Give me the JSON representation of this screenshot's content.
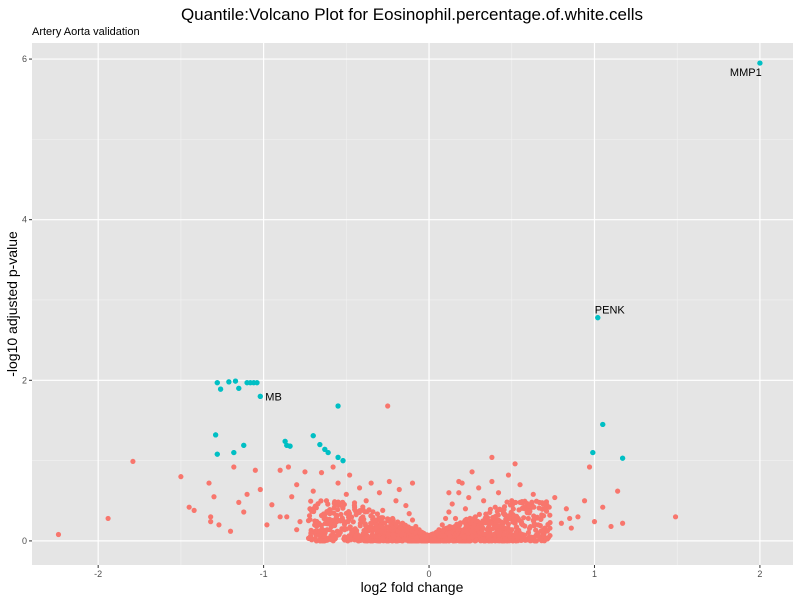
{
  "chart_data": {
    "type": "scatter",
    "title": "Quantile:Volcano Plot for Eosinophil.percentage.of.white.cells",
    "subtitle": "Artery Aorta validation",
    "xlabel": "log2 fold change",
    "ylabel": "-log10 adjusted p-value",
    "xlim": [
      -2.4,
      2.2
    ],
    "ylim": [
      -0.3,
      6.2
    ],
    "x_ticks": [
      -2,
      -1,
      0,
      1,
      2
    ],
    "x_tick_labels": [
      "-2",
      "-1",
      "0",
      "1",
      "2"
    ],
    "y_ticks": [
      0,
      2,
      4,
      6
    ],
    "y_tick_labels": [
      "0",
      "2",
      "4",
      "6"
    ],
    "grid": true,
    "background": "#e5e5e5",
    "colors": {
      "not_significant": "#f8766d",
      "significant": "#00bfc4"
    },
    "series": [
      {
        "points": [
          [
            -2.24,
            0.08
          ],
          [
            -1.94,
            0.28
          ],
          [
            -1.79,
            0.99
          ],
          [
            -1.5,
            0.8
          ],
          [
            -1.45,
            0.42
          ],
          [
            -1.42,
            0.38
          ],
          [
            -1.33,
            0.72
          ],
          [
            -1.32,
            0.3
          ],
          [
            -1.32,
            0.24
          ],
          [
            -1.3,
            0.55
          ],
          [
            -1.27,
            0.2
          ],
          [
            -1.2,
            0.12
          ],
          [
            -1.18,
            0.92
          ],
          [
            -1.15,
            0.48
          ],
          [
            -1.12,
            0.36
          ],
          [
            -1.1,
            0.58
          ],
          [
            -1.05,
            0.88
          ],
          [
            -1.02,
            0.64
          ],
          [
            -0.98,
            0.2
          ],
          [
            -0.95,
            0.45
          ],
          [
            -0.9,
            0.88
          ],
          [
            -0.86,
            0.3
          ],
          [
            -0.85,
            0.92
          ],
          [
            -0.83,
            0.55
          ],
          [
            -0.8,
            0.7
          ],
          [
            -0.78,
            0.24
          ],
          [
            -0.75,
            0.86
          ],
          [
            -0.72,
            0.4
          ],
          [
            -0.7,
            0.62
          ],
          [
            -0.68,
            0.18
          ],
          [
            -0.65,
            0.85
          ],
          [
            -0.62,
            0.5
          ],
          [
            -0.6,
            0.34
          ],
          [
            -0.58,
            0.92
          ],
          [
            -0.55,
            0.72
          ],
          [
            -0.52,
            0.25
          ],
          [
            -0.5,
            0.58
          ],
          [
            -0.48,
            0.82
          ],
          [
            -0.45,
            0.42
          ],
          [
            -0.42,
            0.66
          ],
          [
            -0.4,
            0.3
          ],
          [
            -0.38,
            0.5
          ],
          [
            -0.35,
            0.72
          ],
          [
            -0.32,
            0.2
          ],
          [
            -0.3,
            0.6
          ],
          [
            -0.28,
            0.38
          ],
          [
            -0.25,
            1.68
          ],
          [
            -0.24,
            0.74
          ],
          [
            -0.22,
            0.28
          ],
          [
            -0.2,
            0.5
          ],
          [
            -0.18,
            0.64
          ],
          [
            -0.16,
            0.22
          ],
          [
            -0.14,
            0.44
          ],
          [
            -0.12,
            0.34
          ],
          [
            -0.1,
            0.26
          ],
          [
            -0.08,
            0.18
          ],
          [
            -0.06,
            0.14
          ],
          [
            -0.04,
            0.1
          ],
          [
            -0.02,
            0.06
          ],
          [
            0.0,
            0.02
          ],
          [
            0.02,
            0.06
          ],
          [
            0.04,
            0.1
          ],
          [
            0.06,
            0.14
          ],
          [
            0.08,
            0.2
          ],
          [
            0.1,
            0.28
          ],
          [
            0.12,
            0.36
          ],
          [
            0.14,
            0.46
          ],
          [
            0.16,
            0.28
          ],
          [
            0.18,
            0.6
          ],
          [
            0.2,
            0.72
          ],
          [
            0.22,
            0.4
          ],
          [
            0.24,
            0.54
          ],
          [
            0.26,
            0.86
          ],
          [
            0.28,
            0.3
          ],
          [
            0.3,
            0.66
          ],
          [
            0.33,
            0.5
          ],
          [
            0.35,
            0.26
          ],
          [
            0.38,
            0.74
          ],
          [
            0.4,
            0.42
          ],
          [
            0.42,
            0.6
          ],
          [
            0.45,
            0.34
          ],
          [
            0.48,
            0.82
          ],
          [
            0.5,
            0.5
          ],
          [
            0.52,
            0.22
          ],
          [
            0.55,
            0.7
          ],
          [
            0.58,
            0.4
          ],
          [
            0.6,
            0.28
          ],
          [
            0.63,
            0.58
          ],
          [
            0.66,
            0.2
          ],
          [
            0.7,
            0.46
          ],
          [
            0.73,
            0.32
          ],
          [
            0.76,
            0.54
          ],
          [
            0.8,
            0.22
          ],
          [
            0.83,
            0.4
          ],
          [
            0.86,
            0.16
          ],
          [
            0.9,
            0.3
          ],
          [
            0.94,
            0.5
          ],
          [
            0.97,
            0.92
          ],
          [
            1.0,
            0.24
          ],
          [
            1.05,
            0.42
          ],
          [
            1.1,
            0.18
          ],
          [
            1.14,
            0.62
          ],
          [
            1.17,
            0.22
          ],
          [
            1.49,
            0.3
          ],
          [
            0.38,
            1.04
          ],
          [
            0.52,
            0.96
          ],
          [
            0.18,
            0.74
          ],
          [
            -0.1,
            0.72
          ],
          [
            0.12,
            0.6
          ],
          [
            -0.6,
            0.14
          ],
          [
            0.7,
            0.16
          ],
          [
            -0.8,
            0.14
          ],
          [
            0.85,
            0.28
          ],
          [
            -0.9,
            0.3
          ],
          [
            -0.35,
            0.16
          ],
          [
            0.3,
            0.14
          ],
          [
            -0.45,
            0.12
          ],
          [
            0.45,
            0.12
          ],
          [
            -0.25,
            0.1
          ],
          [
            0.25,
            0.1
          ]
        ]
      },
      {
        "points": [
          [
            2.0,
            5.95
          ],
          [
            1.02,
            2.78
          ],
          [
            -1.28,
            1.97
          ],
          [
            -1.26,
            1.89
          ],
          [
            -1.21,
            1.98
          ],
          [
            -1.17,
            1.99
          ],
          [
            -1.15,
            1.9
          ],
          [
            -1.1,
            1.97
          ],
          [
            -1.08,
            1.97
          ],
          [
            -1.06,
            1.97
          ],
          [
            -1.04,
            1.97
          ],
          [
            -1.02,
            1.8
          ],
          [
            -0.55,
            1.68
          ],
          [
            -1.29,
            1.32
          ],
          [
            -1.28,
            1.08
          ],
          [
            -1.18,
            1.1
          ],
          [
            -1.12,
            1.19
          ],
          [
            -0.87,
            1.24
          ],
          [
            -0.86,
            1.19
          ],
          [
            -0.84,
            1.18
          ],
          [
            -0.7,
            1.31
          ],
          [
            -0.66,
            1.2
          ],
          [
            -0.63,
            1.14
          ],
          [
            -0.61,
            1.1
          ],
          [
            -0.55,
            1.04
          ],
          [
            -0.52,
            1.0
          ],
          [
            0.99,
            1.1
          ],
          [
            1.05,
            1.45
          ],
          [
            1.17,
            1.03
          ]
        ]
      }
    ],
    "annotations": [
      {
        "text": "MMP1",
        "x": 2.0,
        "y": 5.95
      },
      {
        "text": "PENK",
        "x": 1.02,
        "y": 2.78
      },
      {
        "text": "MB",
        "x": -1.02,
        "y": 1.8
      }
    ]
  }
}
